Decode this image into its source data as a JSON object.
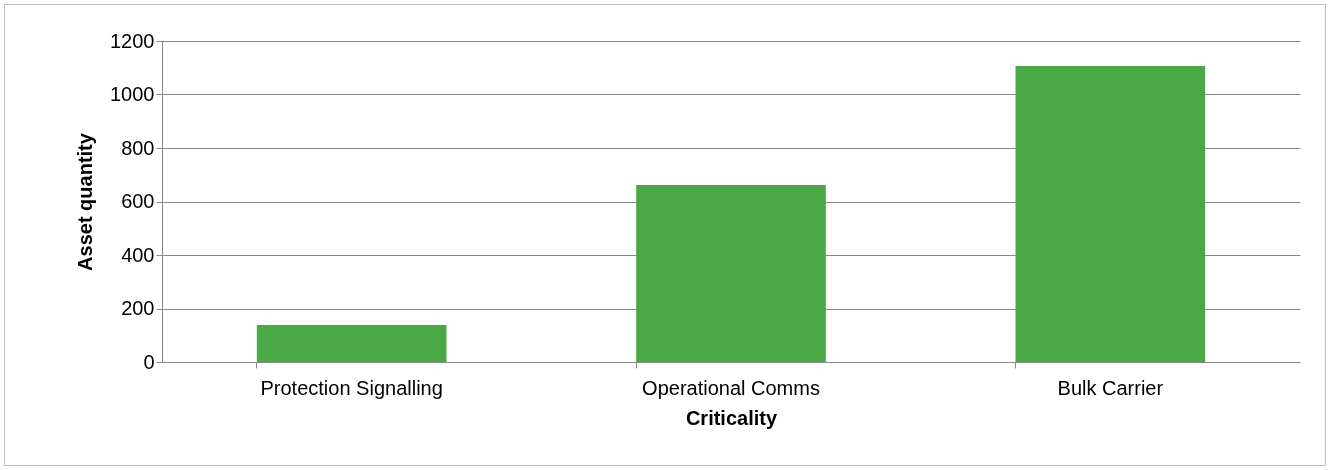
{
  "chart_data": {
    "type": "bar",
    "xlabel": "Criticality",
    "ylabel": "Asset quantity",
    "categories": [
      "Protection Signalling",
      "Operational Comms",
      "Bulk Carrier"
    ],
    "values": [
      138,
      662,
      1107
    ],
    "color": "#4aa846",
    "ylim": [
      0,
      1200
    ],
    "yticks": [
      0,
      200,
      400,
      600,
      800,
      1000,
      1200
    ],
    "grid": "y"
  }
}
